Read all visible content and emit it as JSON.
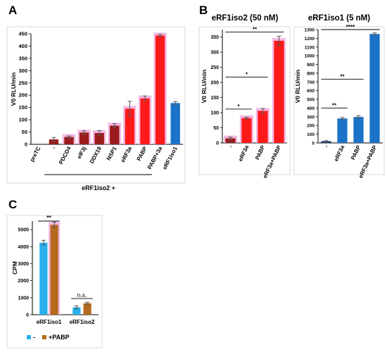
{
  "panels": {
    "A": {
      "letter": "A",
      "footnote": "eRF1iso2 +"
    },
    "B": {
      "letter": "B"
    },
    "C": {
      "letter": "C"
    }
  },
  "colors": {
    "red": "#ff1a1a",
    "darkred": "#9b1c1c",
    "blue": "#1a73c8",
    "navy": "#1a3d78",
    "brown": "#8b3a1a",
    "lightblue": "#29b0ea",
    "orange": "#b56a1e",
    "glow": "#f5b9e4"
  },
  "chart_data": [
    {
      "id": "A",
      "type": "bar",
      "title": "",
      "ylabel": "V0 RLU/min",
      "ylim": [
        0,
        450
      ],
      "yticks": [
        0,
        50,
        100,
        150,
        200,
        250,
        300,
        350,
        400,
        450
      ],
      "categories": [
        "preTC",
        "-",
        "PDCD4",
        "eIF3j",
        "DDX19",
        "NSP1",
        "eRF3a",
        "PABP",
        "PABP+3a",
        "eRF1iso1"
      ],
      "values": [
        0,
        20,
        30,
        48,
        46,
        76,
        145,
        187,
        443,
        168
      ],
      "errors": [
        0,
        8,
        4,
        7,
        10,
        8,
        30,
        10,
        5,
        6
      ],
      "bar_colors": [
        "none",
        "darkred",
        "darkred",
        "darkred",
        "darkred",
        "darkred",
        "red",
        "red",
        "red",
        "blue"
      ],
      "highlight": [
        false,
        false,
        true,
        true,
        true,
        true,
        true,
        true,
        true,
        false
      ]
    },
    {
      "id": "B1",
      "type": "bar",
      "title": "eRF1iso2 (50 nM)",
      "ylabel": "V0 RLU/min",
      "ylim": [
        0,
        375
      ],
      "yticks": [
        0,
        50,
        100,
        150,
        200,
        250,
        300,
        350
      ],
      "categories": [
        "-",
        "eRF3a",
        "PABP",
        "eRF3a+PABP"
      ],
      "values": [
        15,
        82,
        106,
        338
      ],
      "errors": [
        4,
        3,
        8,
        15
      ],
      "bar_colors": [
        "darkred",
        "red",
        "red",
        "red"
      ],
      "highlight": [
        true,
        true,
        true,
        true
      ],
      "significance": [
        {
          "from": 0,
          "to": 1,
          "label": "*",
          "y": 112
        },
        {
          "from": 0,
          "to": 2,
          "label": "*",
          "y": 218
        },
        {
          "from": 0,
          "to": 3,
          "label": "**",
          "y": 367
        }
      ]
    },
    {
      "id": "B2",
      "type": "bar",
      "title": "eRF1iso1 (5 nM)",
      "ylabel": "V0 RLU/min",
      "ylim": [
        0,
        1300
      ],
      "yticks": [
        0,
        100,
        200,
        300,
        400,
        500,
        600,
        700,
        800,
        900,
        1000,
        1100,
        1200,
        1300
      ],
      "categories": [
        "-",
        "eRF3a",
        "PABP",
        "eRF3a+PABP"
      ],
      "values": [
        20,
        280,
        298,
        1250
      ],
      "errors": [
        5,
        12,
        15,
        12
      ],
      "bar_colors": [
        "navy",
        "blue",
        "blue",
        "blue"
      ],
      "highlight": [
        false,
        false,
        false,
        false
      ],
      "significance": [
        {
          "from": 0,
          "to": 1,
          "label": "**",
          "y": 400
        },
        {
          "from": 0,
          "to": 2,
          "label": "**",
          "y": 730
        },
        {
          "from": 0,
          "to": 3,
          "label": "****",
          "y": 1300
        }
      ]
    },
    {
      "id": "C",
      "type": "bar",
      "title": "",
      "ylabel": "CPM",
      "ylim": [
        0,
        5500
      ],
      "yticks": [
        0,
        1000,
        2000,
        3000,
        4000,
        5000
      ],
      "categories": [
        "eRF1iso1",
        "eRF1iso2"
      ],
      "series": [
        {
          "name": "-",
          "color": "lightblue",
          "values": [
            4230,
            430
          ],
          "errors": [
            140,
            80
          ]
        },
        {
          "name": "+PABP",
          "color": "orange",
          "values": [
            5280,
            670
          ],
          "errors": [
            160,
            60
          ]
        }
      ],
      "significance": [
        {
          "group": 0,
          "label": "**",
          "y": 5500
        },
        {
          "group": 1,
          "label": "n.s.",
          "y": 950
        }
      ],
      "legend": "bottom"
    }
  ]
}
